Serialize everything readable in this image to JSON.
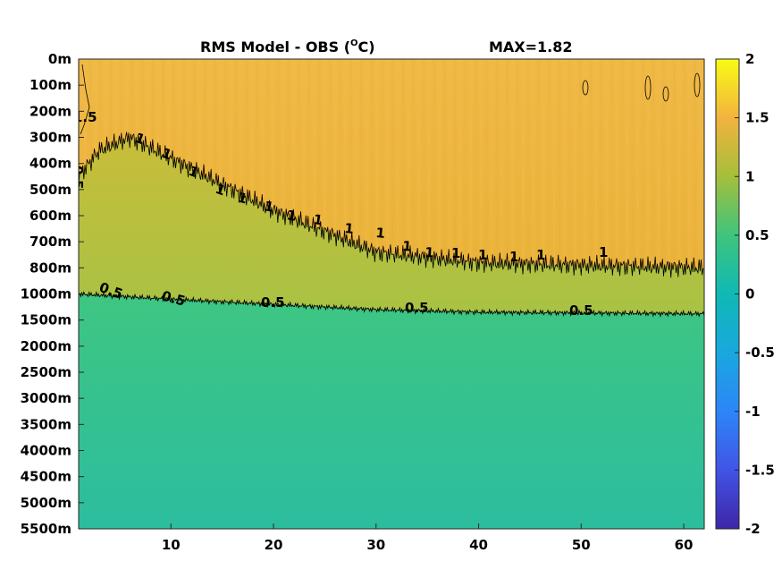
{
  "chart_data": {
    "type": "heatmap",
    "title": "RMS Model - OBS (",
    "title_unit": "O",
    "title_suffix": "C)",
    "max_label": "MAX=1.82",
    "x": {
      "range": [
        1,
        62
      ],
      "ticks": [
        10,
        20,
        30,
        40,
        50,
        60
      ]
    },
    "y_ticks": [
      "0m",
      "100m",
      "200m",
      "300m",
      "400m",
      "500m",
      "600m",
      "700m",
      "800m",
      "1000m",
      "1500m",
      "2000m",
      "2500m",
      "3000m",
      "3500m",
      "4000m",
      "4500m",
      "5000m",
      "5500m"
    ],
    "colorbar": {
      "range": [
        -2,
        2
      ],
      "ticks": [
        "2",
        "1.5",
        "1",
        "0.5",
        "0",
        "-0.5",
        "-1",
        "-1.5",
        "-2"
      ]
    },
    "value_profile_by_depth": [
      {
        "depth": "0m",
        "value": 1.3
      },
      {
        "depth": "100m",
        "value": 1.25
      },
      {
        "depth": "300m",
        "value": 1.2
      },
      {
        "depth": "500m",
        "value": 1.0
      },
      {
        "depth": "800m",
        "value": 0.85
      },
      {
        "depth": "1000m",
        "value": 0.55
      },
      {
        "depth": "1500m",
        "value": 0.45
      },
      {
        "depth": "3000m",
        "value": 0.4
      },
      {
        "depth": "5500m",
        "value": 0.3
      }
    ],
    "contours": [
      {
        "level": 1,
        "depth_by_x": [
          [
            1,
            450
          ],
          [
            3,
            350
          ],
          [
            6,
            300
          ],
          [
            10,
            380
          ],
          [
            20,
            580
          ],
          [
            30,
            740
          ],
          [
            40,
            780
          ],
          [
            50,
            790
          ],
          [
            62,
            800
          ]
        ]
      },
      {
        "level": 0.5,
        "depth_by_x": [
          [
            1,
            1000
          ],
          [
            10,
            1100
          ],
          [
            20,
            1200
          ],
          [
            30,
            1300
          ],
          [
            40,
            1350
          ],
          [
            62,
            1380
          ]
        ]
      }
    ],
    "contour_labels": [
      "1.5",
      "0.5",
      "1",
      "1",
      "1",
      "1",
      "1",
      "1",
      "1",
      "1",
      "1",
      "1",
      "1",
      "1",
      "1",
      "1",
      "1",
      "1",
      "1",
      "0.5",
      "0.5",
      "0.5",
      "0.5",
      "0.5"
    ]
  }
}
